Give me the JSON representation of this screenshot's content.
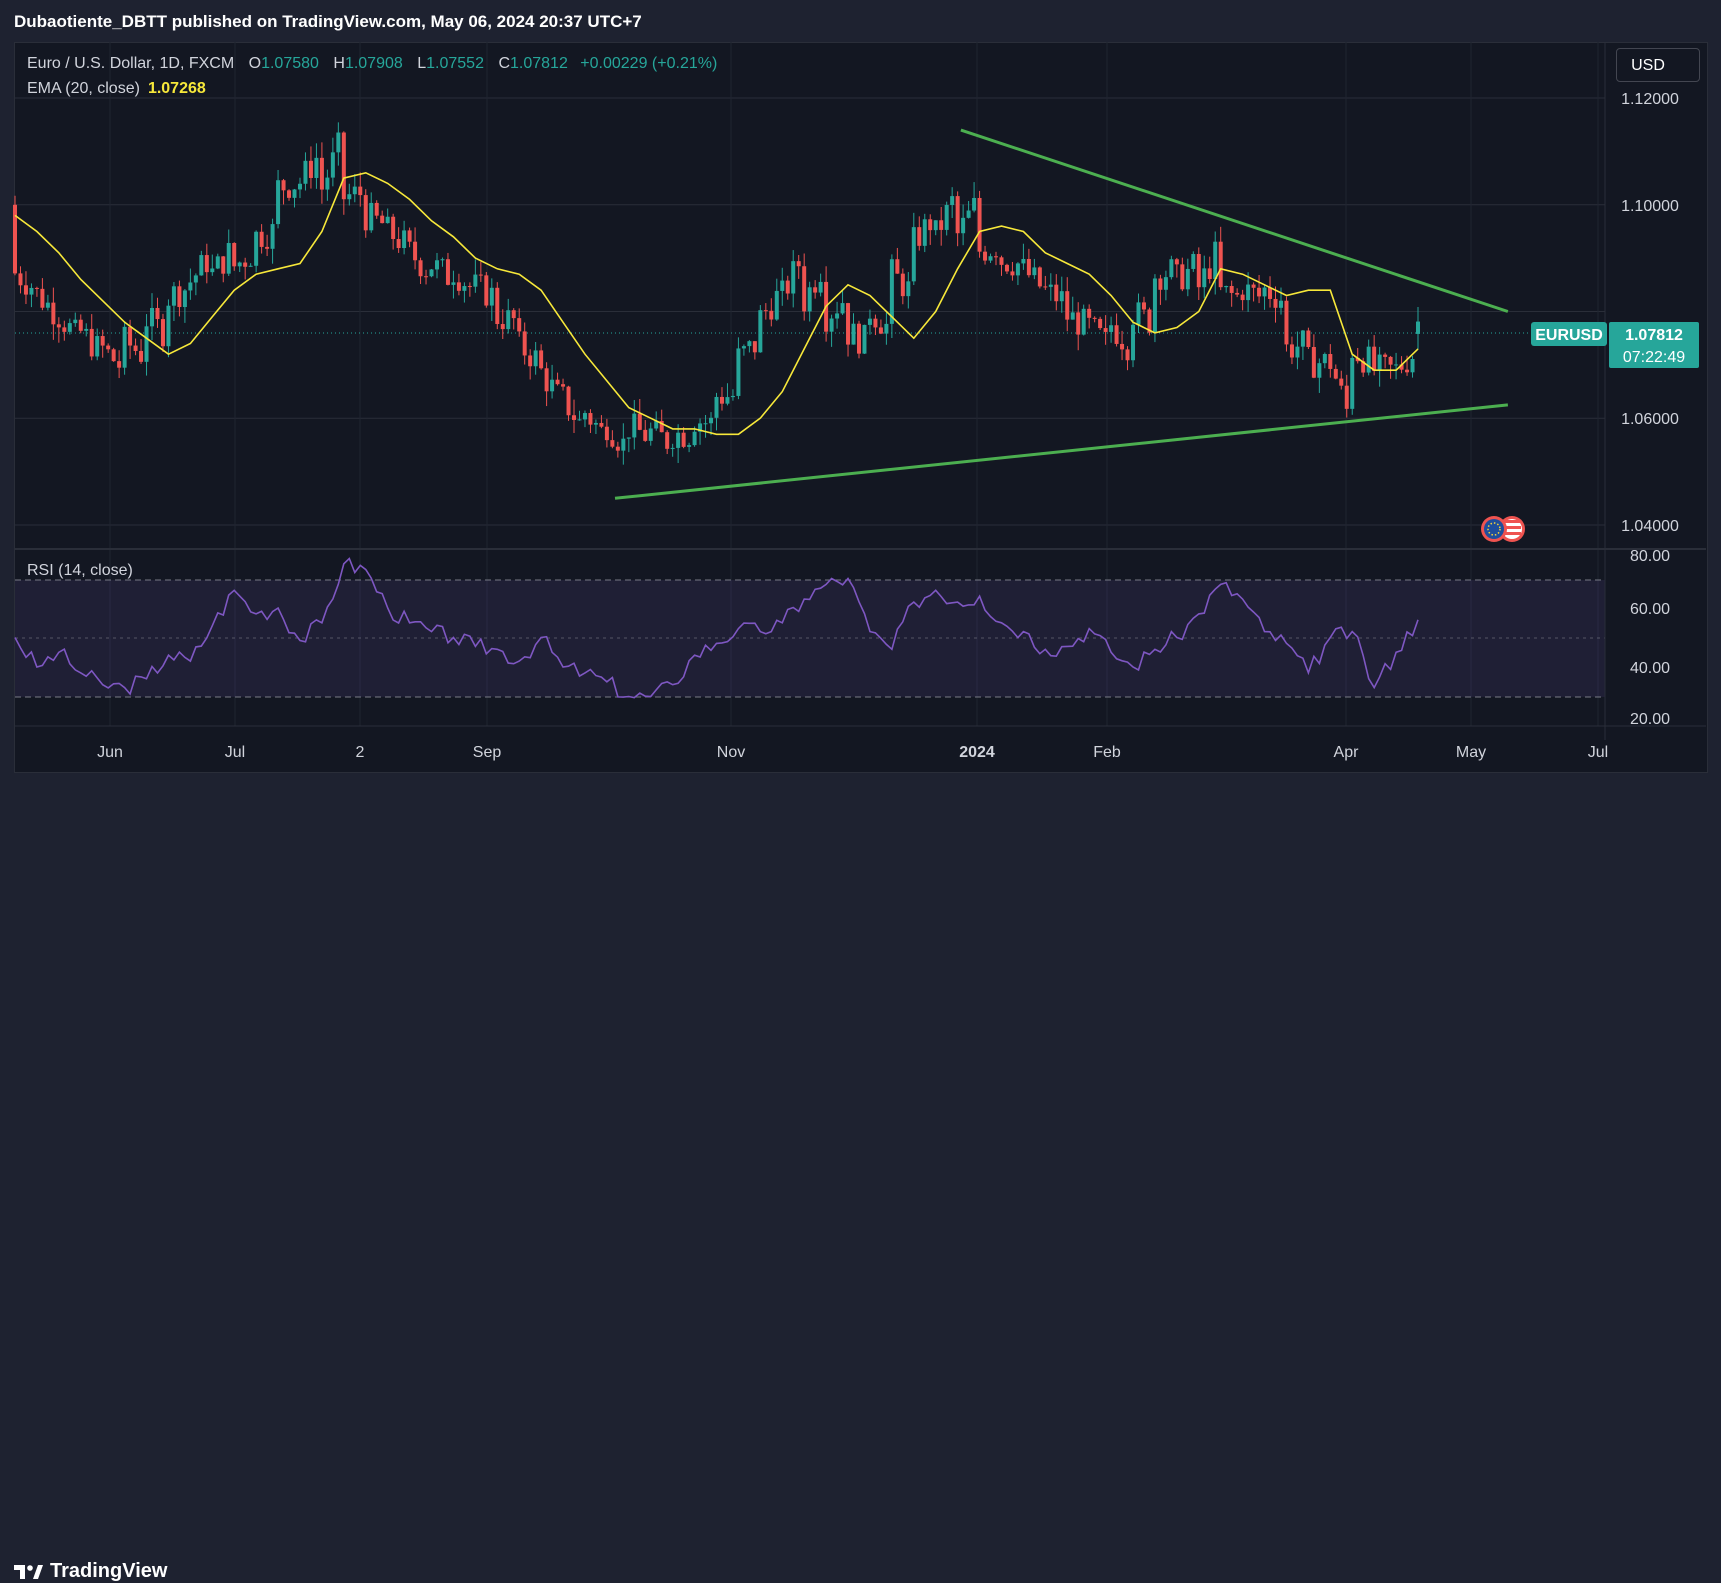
{
  "header": {
    "publisher_line": "Dubaotiente_DBTT published on TradingView.com, May 06, 2024 20:37 UTC+7"
  },
  "legend": {
    "symbol": "Euro / U.S. Dollar, 1D, FXCM",
    "o_label": "O",
    "o_value": "1.07580",
    "h_label": "H",
    "h_value": "1.07908",
    "l_label": "L",
    "l_value": "1.07552",
    "c_label": "C",
    "c_value": "1.07812",
    "change": "+0.00229 (+0.21%)",
    "ema_label": "EMA (20, close)",
    "ema_value": "1.07268",
    "rsi_label": "RSI (14, close)"
  },
  "currency_button": "USD",
  "price_tag": {
    "symbol": "EURUSD",
    "price": "1.07812",
    "countdown": "07:22:49"
  },
  "footer": {
    "brand": "TradingView"
  },
  "colors": {
    "up": "#26a69a",
    "down": "#ef5350",
    "ema": "#f7e83a",
    "trend": "#4caf50",
    "rsi": "#7e57c2",
    "background": "#131722"
  },
  "chart_data": [
    {
      "type": "line",
      "subtype": "candlestick",
      "symbol": "EURUSD",
      "x_labels": [
        "Jun",
        "Jul",
        "2",
        "Sep",
        "Nov",
        "2024",
        "Feb",
        "Apr",
        "May",
        "Jul"
      ],
      "y_ticks": [
        "1.12000",
        "1.10000",
        "1.06000",
        "1.04000"
      ],
      "ylim": [
        1.0355,
        1.1305
      ],
      "series": [
        {
          "name": "EMA (20, close)",
          "values": [
            1.098,
            1.095,
            1.091,
            1.086,
            1.082,
            1.078,
            1.075,
            1.072,
            1.074,
            1.079,
            1.084,
            1.087,
            1.088,
            1.089,
            1.095,
            1.105,
            1.106,
            1.104,
            1.101,
            1.097,
            1.094,
            1.09,
            1.088,
            1.087,
            1.084,
            1.078,
            1.072,
            1.067,
            1.062,
            1.06,
            1.058,
            1.058,
            1.057,
            1.057,
            1.06,
            1.065,
            1.073,
            1.081,
            1.085,
            1.083,
            1.079,
            1.075,
            1.08,
            1.088,
            1.095,
            1.096,
            1.095,
            1.091,
            1.089,
            1.087,
            1.083,
            1.078,
            1.076,
            1.077,
            1.08,
            1.088,
            1.087,
            1.085,
            1.083,
            1.084,
            1.084,
            1.072,
            1.069,
            1.069,
            1.073
          ]
        }
      ],
      "trendlines": [
        {
          "name": "descending",
          "from": [
            "2023-12-28",
            1.114
          ],
          "to": [
            "2024-05-10",
            1.08
          ]
        },
        {
          "name": "ascending",
          "from": [
            "2023-10-03",
            1.045
          ],
          "to": [
            "2024-05-10",
            1.0625
          ]
        }
      ],
      "last": {
        "open": 1.0758,
        "high": 1.07908,
        "low": 1.07552,
        "close": 1.07812
      }
    },
    {
      "type": "line",
      "ylim": [
        20,
        80
      ],
      "y_ticks": [
        "80.00",
        "60.00",
        "40.00",
        "20.00"
      ],
      "bands": [
        30,
        50,
        70
      ],
      "series": [
        {
          "name": "RSI (14, close)",
          "values": [
            50,
            40,
            45,
            38,
            34,
            33,
            36,
            44,
            42,
            54,
            66,
            58,
            60,
            49,
            55,
            75,
            73,
            60,
            55,
            52,
            50,
            47,
            46,
            42,
            50,
            40,
            38,
            35,
            30,
            30,
            34,
            44,
            48,
            53,
            52,
            55,
            63,
            68,
            70,
            52,
            46,
            62,
            66,
            62,
            64,
            55,
            52,
            46,
            47,
            53,
            45,
            40,
            46,
            50,
            58,
            68,
            63,
            52,
            48,
            38,
            50,
            52,
            33,
            45,
            56
          ]
        }
      ]
    }
  ]
}
